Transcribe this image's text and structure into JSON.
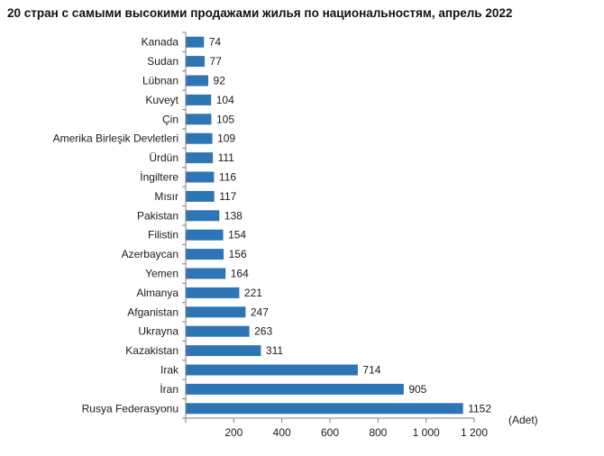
{
  "title": "20 стран с самыми высокими продажами жилья по национальностям, апрель 2022",
  "colors": {
    "bar": "#2e75b6",
    "axis": "#808080"
  },
  "chart_data": {
    "type": "bar",
    "orientation": "horizontal",
    "title": "20 стран с самыми высокими продажами жилья по национальностям, апрель 2022",
    "categories": [
      "Kanada",
      "Sudan",
      "Lübnan",
      "Kuveyt",
      "Çin",
      "Amerika Birleşik Devletleri",
      "Ürdün",
      "İngiltere",
      "Mısır",
      "Pakistan",
      "Filistin",
      "Azerbaycan",
      "Yemen",
      "Almanya",
      "Afganistan",
      "Ukrayna",
      "Kazakistan",
      "Irak",
      "İran",
      "Rusya Federasyonu"
    ],
    "values": [
      74,
      77,
      92,
      104,
      105,
      109,
      111,
      116,
      117,
      138,
      154,
      156,
      164,
      221,
      247,
      263,
      311,
      714,
      905,
      1152
    ],
    "value_labels": [
      "74",
      "77",
      "92",
      "104",
      "105",
      "109",
      "111",
      "116",
      "117",
      "138",
      "154",
      "156",
      "164",
      "221",
      "247",
      "263",
      "311",
      "714",
      "905",
      "1152"
    ],
    "xlim": [
      0,
      1200
    ],
    "xticks": [
      0,
      200,
      400,
      600,
      800,
      1000,
      1200
    ],
    "xtick_labels": [
      "",
      "200",
      "400",
      "600",
      "800",
      "1 000",
      "1 200"
    ],
    "unit_label": "(Adet)",
    "grid": false,
    "legend": "none"
  }
}
